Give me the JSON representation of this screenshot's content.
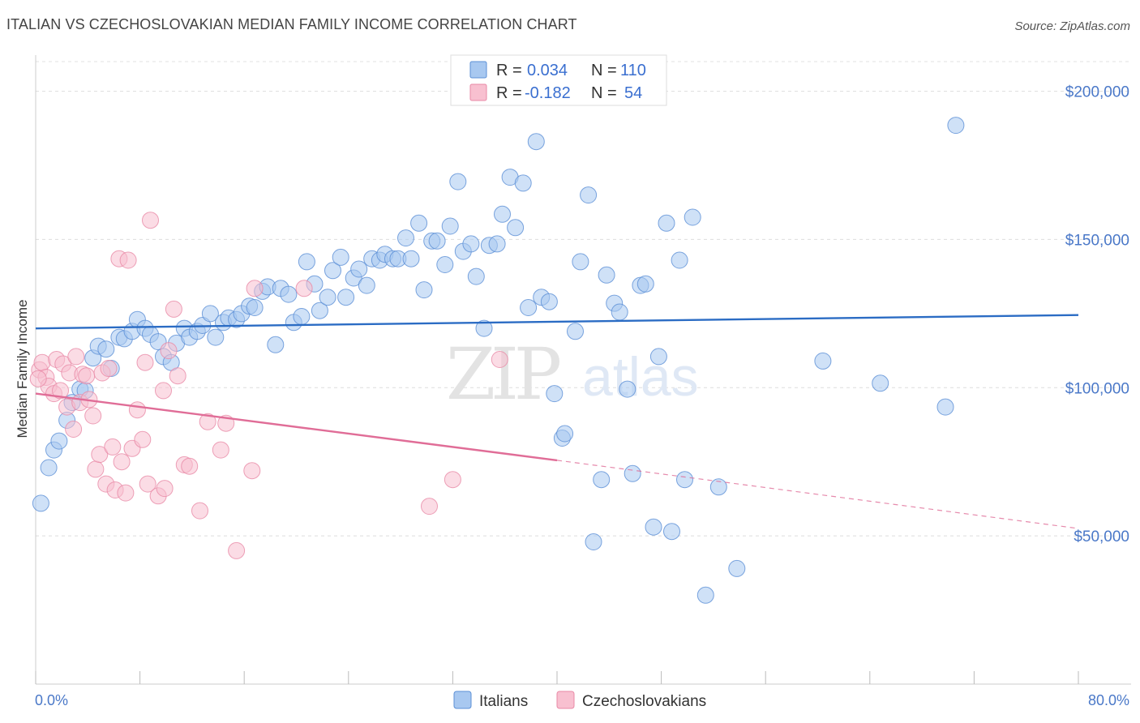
{
  "header": {
    "title": "ITALIAN VS CZECHOSLOVAKIAN MEDIAN FAMILY INCOME CORRELATION CHART",
    "source": "Source: ZipAtlas.com"
  },
  "watermark": {
    "zip": "ZIP",
    "atlas": "atlas"
  },
  "legend": {
    "rows": [
      {
        "r_label": "R =",
        "r_value": "0.034",
        "n_label": "N =",
        "n_value": "110",
        "color": "#a8c8f0",
        "stroke": "#5b8fd6"
      },
      {
        "r_label": "R =",
        "r_value": "-0.182",
        "n_label": "N =",
        "n_value": "54",
        "color": "#f8c0d0",
        "stroke": "#e889a6"
      }
    ]
  },
  "bottom_legend": [
    "Italians",
    "Czechoslovakians"
  ],
  "chart_data": {
    "type": "scatter",
    "ylabel": "Median Family Income",
    "x_axis": {
      "min_label": "0.0%",
      "max_label": "80.0%",
      "range": [
        0,
        80
      ]
    },
    "y_axis": {
      "range": [
        0,
        210000
      ],
      "ticks": [
        50000,
        100000,
        150000,
        200000
      ],
      "tick_labels": [
        "$50,000",
        "$100,000",
        "$150,000",
        "$200,000"
      ]
    },
    "grid": true,
    "series": [
      {
        "name": "Italians",
        "color": "#a8c8f0",
        "stroke": "#5b8fd6",
        "trend": {
          "x": [
            0,
            80
          ],
          "y": [
            120000,
            124500
          ],
          "color": "#2b6cc4"
        },
        "points": [
          [
            0.4,
            61000
          ],
          [
            1.0,
            73000
          ],
          [
            1.4,
            79000
          ],
          [
            1.8,
            82000
          ],
          [
            2.4,
            89000
          ],
          [
            2.8,
            95000
          ],
          [
            3.4,
            99500
          ],
          [
            3.8,
            99000
          ],
          [
            4.4,
            110000
          ],
          [
            4.8,
            114000
          ],
          [
            5.4,
            113000
          ],
          [
            5.8,
            106500
          ],
          [
            6.4,
            117000
          ],
          [
            6.8,
            116500
          ],
          [
            7.4,
            119000
          ],
          [
            7.8,
            123000
          ],
          [
            8.4,
            120000
          ],
          [
            8.8,
            118000
          ],
          [
            9.4,
            115500
          ],
          [
            9.8,
            110500
          ],
          [
            10.4,
            108500
          ],
          [
            10.8,
            115000
          ],
          [
            11.4,
            120000
          ],
          [
            11.8,
            117000
          ],
          [
            12.4,
            119000
          ],
          [
            12.8,
            121000
          ],
          [
            13.4,
            125000
          ],
          [
            13.8,
            117000
          ],
          [
            14.4,
            122000
          ],
          [
            14.8,
            123500
          ],
          [
            15.4,
            123000
          ],
          [
            15.8,
            125000
          ],
          [
            16.4,
            127500
          ],
          [
            16.8,
            127000
          ],
          [
            17.4,
            132500
          ],
          [
            17.8,
            134000
          ],
          [
            18.4,
            114500
          ],
          [
            18.8,
            133500
          ],
          [
            19.4,
            131500
          ],
          [
            19.8,
            122000
          ],
          [
            20.4,
            124000
          ],
          [
            20.8,
            142500
          ],
          [
            21.4,
            135000
          ],
          [
            21.8,
            126000
          ],
          [
            22.4,
            130500
          ],
          [
            22.8,
            139500
          ],
          [
            23.4,
            144000
          ],
          [
            23.8,
            130500
          ],
          [
            24.4,
            137000
          ],
          [
            24.8,
            140000
          ],
          [
            25.4,
            134500
          ],
          [
            25.8,
            143500
          ],
          [
            26.4,
            143000
          ],
          [
            26.8,
            145000
          ],
          [
            27.4,
            143500
          ],
          [
            27.8,
            143500
          ],
          [
            28.4,
            150500
          ],
          [
            28.8,
            143500
          ],
          [
            29.4,
            155500
          ],
          [
            29.8,
            133000
          ],
          [
            30.4,
            149500
          ],
          [
            30.8,
            149500
          ],
          [
            31.4,
            141500
          ],
          [
            31.8,
            154500
          ],
          [
            32.4,
            169500
          ],
          [
            32.8,
            146000
          ],
          [
            33.4,
            148500
          ],
          [
            33.8,
            137500
          ],
          [
            34.4,
            120000
          ],
          [
            34.8,
            148000
          ],
          [
            35.4,
            148500
          ],
          [
            35.8,
            158500
          ],
          [
            36.4,
            171000
          ],
          [
            36.8,
            154000
          ],
          [
            37.4,
            169000
          ],
          [
            37.8,
            127000
          ],
          [
            38.4,
            183000
          ],
          [
            38.8,
            130500
          ],
          [
            39.4,
            129000
          ],
          [
            39.8,
            98000
          ],
          [
            40.4,
            83000
          ],
          [
            40.6,
            84500
          ],
          [
            41.4,
            119000
          ],
          [
            41.8,
            142500
          ],
          [
            42.4,
            165000
          ],
          [
            42.8,
            48000
          ],
          [
            43.4,
            69000
          ],
          [
            43.8,
            138000
          ],
          [
            44.4,
            128500
          ],
          [
            44.8,
            125500
          ],
          [
            45.4,
            99500
          ],
          [
            45.8,
            71000
          ],
          [
            46.4,
            134500
          ],
          [
            46.8,
            135000
          ],
          [
            47.4,
            53000
          ],
          [
            47.8,
            110500
          ],
          [
            48.4,
            155500
          ],
          [
            48.8,
            51500
          ],
          [
            49.4,
            143000
          ],
          [
            49.8,
            69000
          ],
          [
            50.4,
            157500
          ],
          [
            51.4,
            30000
          ],
          [
            52.4,
            66500
          ],
          [
            53.8,
            39000
          ],
          [
            60.4,
            109000
          ],
          [
            64.8,
            101500
          ],
          [
            69.8,
            93500
          ],
          [
            70.6,
            188500
          ]
        ]
      },
      {
        "name": "Czechoslovakians",
        "color": "#f8c0d0",
        "stroke": "#e889a6",
        "trend": {
          "x": [
            0,
            40
          ],
          "y": [
            98000,
            75500
          ],
          "dashed_to": [
            80,
            52500
          ],
          "color": "#e06d97"
        },
        "points": [
          [
            0.3,
            106000
          ],
          [
            0.5,
            108500
          ],
          [
            0.8,
            103500
          ],
          [
            1.0,
            100500
          ],
          [
            1.4,
            98000
          ],
          [
            1.6,
            109500
          ],
          [
            1.9,
            99000
          ],
          [
            2.1,
            108000
          ],
          [
            2.4,
            93500
          ],
          [
            2.6,
            105000
          ],
          [
            2.9,
            86000
          ],
          [
            3.1,
            110500
          ],
          [
            3.4,
            95000
          ],
          [
            3.6,
            104500
          ],
          [
            3.9,
            104000
          ],
          [
            4.1,
            96000
          ],
          [
            4.4,
            90500
          ],
          [
            4.6,
            72500
          ],
          [
            4.9,
            77500
          ],
          [
            5.1,
            105000
          ],
          [
            5.4,
            67500
          ],
          [
            5.6,
            106500
          ],
          [
            5.9,
            80000
          ],
          [
            6.1,
            65500
          ],
          [
            6.4,
            143500
          ],
          [
            6.6,
            75000
          ],
          [
            6.9,
            64500
          ],
          [
            7.1,
            143000
          ],
          [
            7.4,
            79500
          ],
          [
            7.8,
            92500
          ],
          [
            8.2,
            82500
          ],
          [
            8.4,
            108500
          ],
          [
            8.6,
            67500
          ],
          [
            8.8,
            156500
          ],
          [
            9.4,
            63500
          ],
          [
            9.8,
            99000
          ],
          [
            9.9,
            66000
          ],
          [
            10.2,
            112500
          ],
          [
            10.6,
            126500
          ],
          [
            10.9,
            104000
          ],
          [
            11.4,
            74000
          ],
          [
            11.8,
            73500
          ],
          [
            12.6,
            58500
          ],
          [
            13.2,
            88500
          ],
          [
            14.2,
            79000
          ],
          [
            14.6,
            88000
          ],
          [
            15.4,
            45000
          ],
          [
            16.6,
            72000
          ],
          [
            16.8,
            133500
          ],
          [
            20.6,
            133500
          ],
          [
            30.2,
            60000
          ],
          [
            32.0,
            69000
          ],
          [
            35.6,
            109500
          ],
          [
            0.2,
            103000
          ]
        ]
      }
    ]
  }
}
